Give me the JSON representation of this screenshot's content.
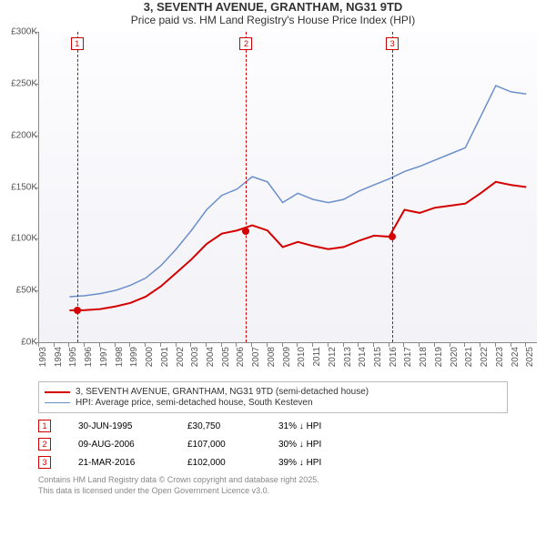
{
  "title": "3, SEVENTH AVENUE, GRANTHAM, NG31 9TD",
  "subtitle": "Price paid vs. HM Land Registry's House Price Index (HPI)",
  "chart": {
    "type": "line",
    "background_gradient": [
      "#fdfdff",
      "#f2f2f7"
    ],
    "x_years": [
      1993,
      1994,
      1995,
      1996,
      1997,
      1998,
      1999,
      2000,
      2001,
      2002,
      2003,
      2004,
      2005,
      2006,
      2007,
      2008,
      2009,
      2010,
      2011,
      2012,
      2013,
      2014,
      2015,
      2016,
      2017,
      2018,
      2019,
      2020,
      2021,
      2022,
      2023,
      2024,
      2025
    ],
    "xlim": [
      1993,
      2025.7
    ],
    "ylim": [
      0,
      300000
    ],
    "ytick_step": 50000,
    "ylabels": [
      "£0K",
      "£50K",
      "£100K",
      "£150K",
      "£200K",
      "£250K",
      "£300K"
    ],
    "axis_color": "#888888",
    "tick_fontsize": 10,
    "series": [
      {
        "key": "price",
        "label": "3, SEVENTH AVENUE, GRANTHAM, NG31 9TD (semi-detached house)",
        "color": "#d40000",
        "width": 2,
        "x_start": 1995.0,
        "y": [
          30750,
          31000,
          32000,
          34500,
          38000,
          44000,
          54000,
          67000,
          80000,
          95000,
          105000,
          108000,
          113000,
          108000,
          92000,
          97000,
          93000,
          90000,
          92000,
          98000,
          103000,
          102000,
          128000,
          125000,
          130000,
          132000,
          134000,
          144000,
          155000,
          152000,
          150000
        ]
      },
      {
        "key": "hpi",
        "label": "HPI: Average price, semi-detached house, South Kesteven",
        "color": "#6b8fc9",
        "width": 1.5,
        "x_start": 1995.0,
        "y": [
          44000,
          45000,
          47000,
          50000,
          55000,
          62000,
          74000,
          90000,
          108000,
          128000,
          142000,
          148000,
          160000,
          155000,
          135000,
          144000,
          138000,
          135000,
          138000,
          146000,
          152000,
          158000,
          165000,
          170000,
          176000,
          182000,
          188000,
          218000,
          248000,
          242000,
          240000
        ]
      }
    ],
    "markers": [
      {
        "n": "1",
        "year": 1995.5,
        "color": "#d40000",
        "dot_y": 30750
      },
      {
        "n": "2",
        "year": 2006.6,
        "color": "#d40000",
        "dot_y": 107000
      },
      {
        "n": "3",
        "year": 2016.2,
        "color": "#d40000",
        "dot_y": 102000
      }
    ]
  },
  "legend": {
    "border_color": "#bbbbbb"
  },
  "events": [
    {
      "n": "1",
      "color": "#d40000",
      "date": "30-JUN-1995",
      "price": "£30,750",
      "delta": "31% ↓ HPI"
    },
    {
      "n": "2",
      "color": "#d40000",
      "date": "09-AUG-2006",
      "price": "£107,000",
      "delta": "30% ↓ HPI"
    },
    {
      "n": "3",
      "color": "#d40000",
      "date": "21-MAR-2016",
      "price": "£102,000",
      "delta": "39% ↓ HPI"
    }
  ],
  "footer": {
    "line1": "Contains HM Land Registry data © Crown copyright and database right 2025.",
    "line2": "This data is licensed under the Open Government Licence v3.0."
  }
}
